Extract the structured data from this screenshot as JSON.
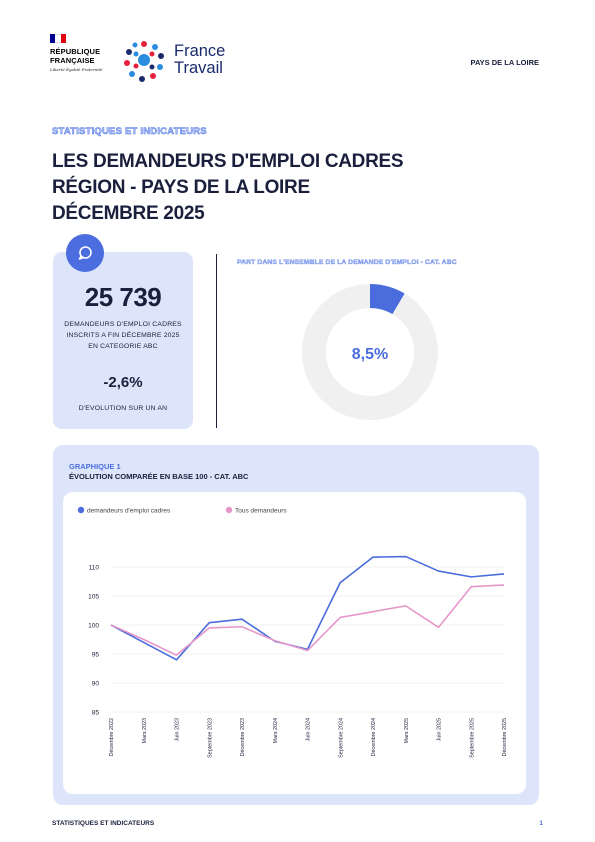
{
  "header": {
    "republique_line1": "RÉPUBLIQUE",
    "republique_line2": "FRANÇAISE",
    "motto": "Liberté Égalité Fraternité",
    "france_travail_line1": "France",
    "france_travail_line2": "Travail",
    "region": "PAYS DE LA LOIRE"
  },
  "kicker": "STATISTIQUES ET INDICATEURS",
  "title": {
    "line1": "LES DEMANDEURS D'EMPLOI CADRES",
    "line2": "RÉGION - PAYS DE LA LOIRE",
    "line3": "DÉCEMBRE 2025"
  },
  "kpi": {
    "icon": "chat-bubble-icon",
    "value": "25 739",
    "description": "DEMANDEURS D'EMPLOI CADRES INSCRITS A FIN DÉCEMBRE 2025 EN CATEGORIE ABC",
    "evolution": "-2,6%",
    "evolution_label": "D'EVOLUTION SUR UN AN"
  },
  "share": {
    "title": "PART DANS L'ENSEMBLE DE LA DEMANDE D'EMPLOI - CAT. ABC",
    "value_label": "8,5%",
    "fraction": 0.085
  },
  "chart": {
    "kicker": "GRAPHIQUE 1",
    "title": "ÉVOLUTION COMPARÉE EN BASE 100 - CAT. ABC"
  },
  "chart_data": {
    "type": "line",
    "x": [
      "Décembre 2022",
      "Mars 2023",
      "Juin 2023",
      "Septembre 2023",
      "Décembre 2023",
      "Mars 2024",
      "Juin 2024",
      "Septembre 2024",
      "Décembre 2024",
      "Mars 2025",
      "Juin 2025",
      "Septembre 2025",
      "Décembre 2025"
    ],
    "series": [
      {
        "name": "demandeurs d'emploi cadres",
        "color": "#4a6cdc",
        "values": [
          100,
          97,
          94,
          100.4,
          101,
          97.2,
          95.8,
          107.3,
          111.7,
          111.8,
          109.3,
          108.3,
          108.8
        ]
      },
      {
        "name": "Tous demandeurs",
        "color": "#e597c9",
        "values": [
          100,
          97.5,
          94.8,
          99.5,
          99.7,
          97.3,
          95.6,
          101.3,
          102.3,
          103.3,
          99.6,
          106.6,
          106.9
        ]
      }
    ],
    "yticks": [
      85,
      90,
      95,
      100,
      105,
      110
    ],
    "ylim": [
      85,
      115
    ],
    "grid": true,
    "legend": "top-left"
  },
  "footer": {
    "left": "STATISTIQUES ET INDICATEURS",
    "page": "1"
  }
}
